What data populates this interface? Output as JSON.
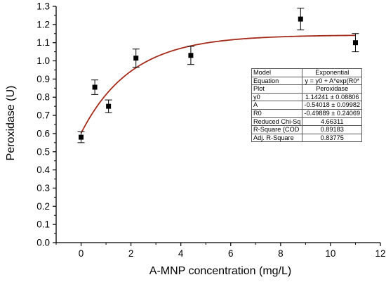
{
  "chart_data": {
    "type": "scatter",
    "xlabel": "A-MNP concentration (mg/L)",
    "ylabel": "Peroxidase (U)",
    "xlim": [
      -1,
      12
    ],
    "ylim": [
      0,
      1.3
    ],
    "x_ticks": [
      "0",
      "2",
      "4",
      "6",
      "8",
      "10",
      "12"
    ],
    "y_ticks": [
      "0.0",
      "0.1",
      "0.2",
      "0.3",
      "0.4",
      "0.5",
      "0.6",
      "0.7",
      "0.8",
      "0.9",
      "1.0",
      "1.1",
      "1.2",
      "1.3"
    ],
    "points": [
      {
        "x": 0,
        "y": 0.58,
        "err": 0.03
      },
      {
        "x": 0.55,
        "y": 0.855,
        "err": 0.04
      },
      {
        "x": 1.1,
        "y": 0.75,
        "err": 0.035
      },
      {
        "x": 2.2,
        "y": 1.015,
        "err": 0.05
      },
      {
        "x": 4.4,
        "y": 1.03,
        "err": 0.05
      },
      {
        "x": 8.8,
        "y": 1.23,
        "err": 0.06
      },
      {
        "x": 11,
        "y": 1.1,
        "err": 0.05
      }
    ],
    "fit": {
      "model": "Exponential",
      "y0": 1.14241,
      "A": -0.54018,
      "R0": -0.49889,
      "x_range": [
        0,
        11
      ],
      "color": "#a52a1a"
    },
    "marker_color": "#000000",
    "axis_color": "#000000"
  },
  "fit_table": [
    {
      "key": "Model",
      "value": "Exponential"
    },
    {
      "key": "Equation",
      "value": "y = y0 + A*exp(R0*"
    },
    {
      "key": "Plot",
      "value": "Peroxidase"
    },
    {
      "key": "y0",
      "value": "1.14241 ± 0.08806"
    },
    {
      "key": "A",
      "value": "-0.54018 ± 0.09982"
    },
    {
      "key": "R0",
      "value": "-0.49889 ± 0.24069"
    },
    {
      "key": "Reduced Chi-Sq",
      "value": "4.66311"
    },
    {
      "key": "R-Square (COD",
      "value": "0.89183"
    },
    {
      "key": "Adj. R-Square",
      "value": "0.83775"
    }
  ]
}
